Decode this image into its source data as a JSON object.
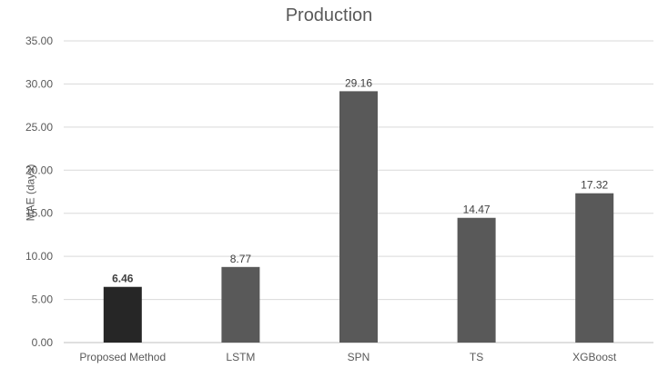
{
  "chart_data": {
    "type": "bar",
    "title": "Production",
    "xlabel": "",
    "ylabel": "MAE (days)",
    "ylim": [
      0,
      35
    ],
    "ytick_step": 5,
    "ytick_labels": [
      "0.00",
      "5.00",
      "10.00",
      "15.00",
      "20.00",
      "25.00",
      "30.00",
      "35.00"
    ],
    "grid": true,
    "categories": [
      "Proposed Method",
      "LSTM",
      "SPN",
      "TS",
      "XGBoost"
    ],
    "values": [
      6.46,
      8.77,
      29.16,
      14.47,
      17.32
    ],
    "data_labels": [
      "6.46",
      "8.77",
      "29.16",
      "14.47",
      "17.32"
    ],
    "highlight_index": 0,
    "colors": {
      "highlight": "#262626",
      "bar": "#595959",
      "grid": "#d9d9d9",
      "axis": "#bfbfbf"
    }
  }
}
